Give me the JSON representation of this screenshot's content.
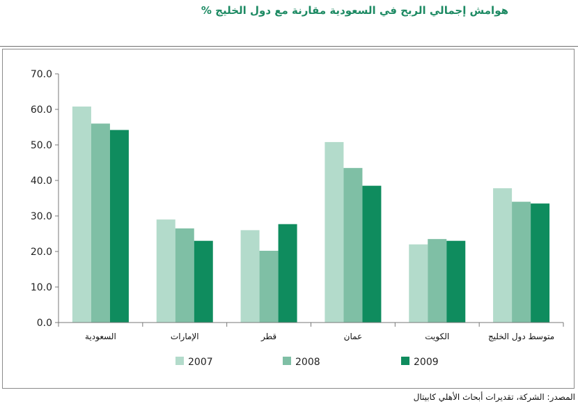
{
  "chart_data": {
    "type": "bar",
    "title": "هوامش إجمالي الربح في السعودية مقارنة مع دول الخليج %",
    "xlabel": "",
    "ylabel": "",
    "ylim": [
      0,
      70
    ],
    "yticks": [
      "0.0",
      "10.0",
      "20.0",
      "30.0",
      "40.0",
      "50.0",
      "60.0",
      "70.0"
    ],
    "grid": false,
    "legend_position": "bottom",
    "categories": [
      "السعودية",
      "الإمارات",
      "قطر",
      "عمان",
      "الكويت",
      "متوسط دول الخليج"
    ],
    "series": [
      {
        "name": "2007",
        "color": "#b3dbcb",
        "values": [
          60.8,
          29.0,
          26.0,
          50.8,
          22.0,
          37.8
        ]
      },
      {
        "name": "2008",
        "color": "#7fbfa5",
        "values": [
          56.0,
          26.5,
          20.2,
          43.5,
          23.5,
          34.0
        ]
      },
      {
        "name": "2009",
        "color": "#0f8c5e",
        "values": [
          54.2,
          23.0,
          27.7,
          38.5,
          23.0,
          33.5
        ]
      }
    ],
    "source": "المصدر: الشركة، تقديرات أبحاث الأهلي كابيتال"
  }
}
